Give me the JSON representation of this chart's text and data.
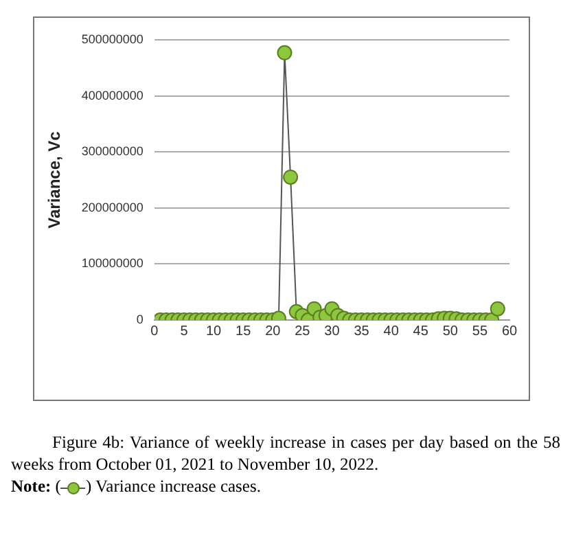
{
  "chart_data": {
    "type": "line",
    "ylabel": "Variance, Vc",
    "x": [
      1,
      2,
      3,
      4,
      5,
      6,
      7,
      8,
      9,
      10,
      11,
      12,
      13,
      14,
      15,
      16,
      17,
      18,
      19,
      20,
      21,
      22,
      23,
      24,
      25,
      26,
      27,
      28,
      29,
      30,
      31,
      32,
      33,
      34,
      35,
      36,
      37,
      38,
      39,
      40,
      41,
      42,
      43,
      44,
      45,
      46,
      47,
      48,
      49,
      50,
      51,
      52,
      53,
      54,
      55,
      56,
      57,
      58
    ],
    "series": [
      {
        "name": "Variance increase cases.",
        "color": "#8dc63f",
        "values": [
          0,
          0,
          0,
          0,
          0,
          0,
          0,
          0,
          0,
          0,
          0,
          0,
          0,
          0,
          0,
          0,
          0,
          0,
          0,
          0,
          3000000,
          477000000,
          255000000,
          15000000,
          8000000,
          0,
          20000000,
          5000000,
          8000000,
          20000000,
          8000000,
          3000000,
          0,
          0,
          0,
          0,
          0,
          0,
          0,
          0,
          0,
          0,
          0,
          0,
          0,
          0,
          0,
          2000000,
          3000000,
          3000000,
          2000000,
          0,
          0,
          0,
          0,
          0,
          0,
          20000000
        ]
      }
    ],
    "xlim": [
      0,
      60
    ],
    "xticks": [
      0,
      5,
      10,
      15,
      20,
      25,
      30,
      35,
      40,
      45,
      50,
      55,
      60
    ],
    "ylim": [
      0,
      500000000
    ],
    "yticks": [
      0,
      100000000,
      200000000,
      300000000,
      400000000,
      500000000
    ],
    "grid": "y",
    "marker": "circle",
    "line_style": "solid",
    "legend": "bottom",
    "annotations": [
      "Figure 4b: Variance of weekly increase in cases per day based on the 58 weeks from October 01, 2021 to November 10, 2022.",
      "Note:",
      "(",
      ")"
    ]
  }
}
